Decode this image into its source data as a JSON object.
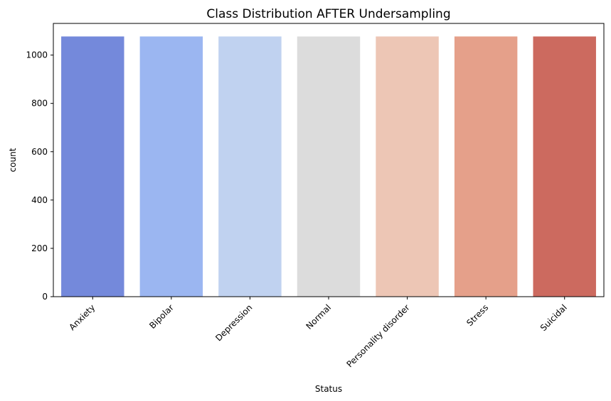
{
  "chart_data": {
    "type": "bar",
    "title": "Class Distribution AFTER Undersampling",
    "xlabel": "Status",
    "ylabel": "count",
    "categories": [
      "Anxiety",
      "Bipolar",
      "Depression",
      "Normal",
      "Personality disorder",
      "Stress",
      "Suicidal"
    ],
    "values": [
      1077,
      1077,
      1077,
      1077,
      1077,
      1077,
      1077
    ],
    "colors": [
      "#7489DB",
      "#9BB6F1",
      "#C0D2F0",
      "#DCDCDC",
      "#EDC6B5",
      "#E5A08A",
      "#CC6A5F"
    ],
    "ylim": [
      0,
      1131
    ],
    "yticks": [
      0,
      200,
      400,
      600,
      800,
      1000
    ],
    "xtick_rotation": 45,
    "grid": false,
    "legend": "none"
  }
}
